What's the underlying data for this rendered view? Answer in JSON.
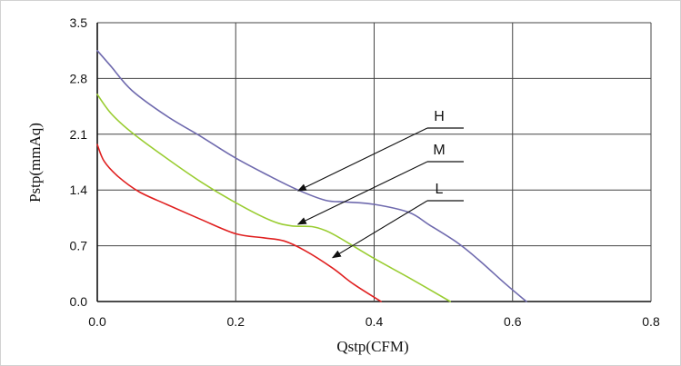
{
  "chart_data": {
    "type": "line",
    "title": "",
    "xlabel": "Qstp(CFM)",
    "ylabel": "Pstp(mmAq)",
    "xlim": [
      0.0,
      0.8
    ],
    "ylim": [
      0.0,
      3.5
    ],
    "xticks": [
      "0.0",
      "0.2",
      "0.4",
      "0.6",
      "0.8"
    ],
    "yticks": [
      "0.0",
      "0.7",
      "1.4",
      "2.1",
      "2.8",
      "3.5"
    ],
    "grid": true,
    "series": [
      {
        "name": "H",
        "color": "#6f6aae",
        "x": [
          0.0,
          0.02,
          0.05,
          0.1,
          0.15,
          0.2,
          0.25,
          0.29,
          0.33,
          0.36,
          0.4,
          0.45,
          0.48,
          0.52,
          0.55,
          0.59,
          0.62
        ],
        "y": [
          3.15,
          2.95,
          2.65,
          2.33,
          2.07,
          1.8,
          1.57,
          1.4,
          1.27,
          1.25,
          1.22,
          1.12,
          0.96,
          0.74,
          0.53,
          0.22,
          0.0
        ]
      },
      {
        "name": "M",
        "color": "#9acd32",
        "x": [
          0.0,
          0.02,
          0.05,
          0.1,
          0.15,
          0.2,
          0.25,
          0.28,
          0.31,
          0.33,
          0.35,
          0.4,
          0.45,
          0.51
        ],
        "y": [
          2.6,
          2.36,
          2.12,
          1.8,
          1.5,
          1.24,
          1.02,
          0.95,
          0.94,
          0.89,
          0.8,
          0.54,
          0.3,
          0.0
        ]
      },
      {
        "name": "L",
        "color": "#e02020",
        "x": [
          0.0,
          0.01,
          0.03,
          0.06,
          0.1,
          0.15,
          0.2,
          0.24,
          0.27,
          0.3,
          0.34,
          0.37,
          0.41
        ],
        "y": [
          1.97,
          1.76,
          1.57,
          1.38,
          1.22,
          1.03,
          0.85,
          0.8,
          0.76,
          0.64,
          0.42,
          0.22,
          0.0
        ]
      }
    ],
    "annotations": [
      {
        "text": "H",
        "target": [
          0.29,
          1.39
        ]
      },
      {
        "text": "M",
        "target": [
          0.29,
          0.97
        ]
      },
      {
        "text": "L",
        "target": [
          0.34,
          0.55
        ]
      }
    ]
  }
}
